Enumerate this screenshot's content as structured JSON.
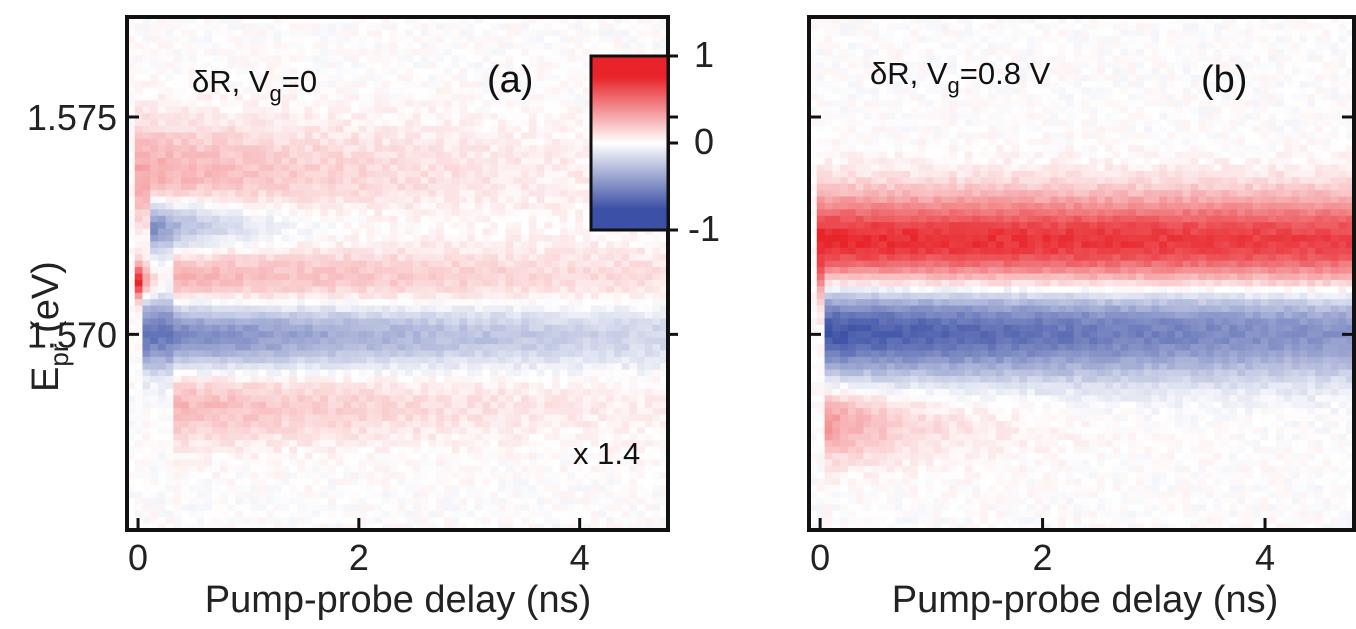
{
  "chart_data": [
    {
      "type": "heatmap",
      "panel_label": "(a)",
      "annotation": {
        "prefix": "δR, V",
        "sub": "g",
        "suffix": "=0"
      },
      "scale_note": "x 1.4",
      "xlabel": "Pump-probe delay (ns)",
      "ylabel": {
        "main": "E",
        "sub": "pr",
        "suffix": " (eV)"
      },
      "xlim": [
        -0.1,
        4.8
      ],
      "ylim": [
        1.5655,
        1.5773
      ],
      "xticks": [
        0,
        2,
        4
      ],
      "yticks": [
        1.57,
        1.575
      ],
      "ytick_labels": [
        "1.570",
        "1.575"
      ],
      "features": [
        {
          "kind": "positive",
          "center_eV": 1.5737,
          "width_eV": 0.0012,
          "amplitude": 0.4,
          "decay_ns": 2.5,
          "x_start_ns": 0.0
        },
        {
          "kind": "negative",
          "center_eV": 1.5725,
          "width_eV": 0.0006,
          "amplitude": -0.8,
          "decay_ns": 0.8,
          "x_start_ns": 0.1
        },
        {
          "kind": "positive",
          "center_eV": 1.5712,
          "width_eV": 0.0008,
          "amplitude": 0.4,
          "decay_ns": 5.0,
          "x_start_ns": 0.3
        },
        {
          "kind": "positive",
          "center_eV": 1.5712,
          "width_eV": 0.0004,
          "amplitude": 1.0,
          "decay_ns": 0.1,
          "x_start_ns": 0.0
        },
        {
          "kind": "negative",
          "center_eV": 1.57,
          "width_eV": 0.0008,
          "amplitude": -0.8,
          "decay_ns": 4.0,
          "x_start_ns": 0.05
        },
        {
          "kind": "positive",
          "center_eV": 1.5684,
          "width_eV": 0.0009,
          "amplitude": 0.35,
          "decay_ns": 3.0,
          "x_start_ns": 0.3
        }
      ]
    },
    {
      "type": "heatmap",
      "panel_label": "(b)",
      "annotation": {
        "prefix": "δR, V",
        "sub": "g",
        "suffix": "=0.8 V"
      },
      "xlabel": "Pump-probe delay (ns)",
      "xlim": [
        -0.1,
        4.8
      ],
      "ylim": [
        1.5655,
        1.5773
      ],
      "xticks": [
        0,
        2,
        4
      ],
      "yticks": [
        1.57,
        1.575
      ],
      "features": [
        {
          "kind": "positive",
          "center_eV": 1.5721,
          "width_eV": 0.0011,
          "amplitude": 1.0,
          "decay_ns": 40.0,
          "x_start_ns": 0.0
        },
        {
          "kind": "negative",
          "center_eV": 1.5701,
          "width_eV": 0.0011,
          "amplitude": -1.0,
          "decay_ns": 10.0,
          "x_start_ns": 0.05
        },
        {
          "kind": "positive",
          "center_eV": 1.568,
          "width_eV": 0.0009,
          "amplitude": 0.5,
          "decay_ns": 0.9,
          "x_start_ns": 0.05
        }
      ]
    }
  ],
  "colorbar": {
    "ticks": [
      1,
      0,
      -1
    ],
    "tick_labels": [
      "1",
      "0",
      "-1"
    ],
    "colors": {
      "positive": "#e8242a",
      "zero": "#ffffff",
      "negative": "#3c50a5"
    }
  }
}
